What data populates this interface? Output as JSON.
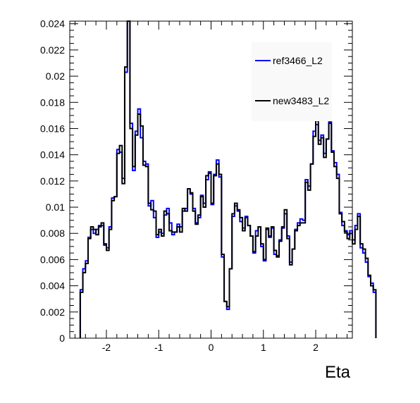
{
  "chart_data": {
    "type": "line",
    "title": "",
    "xlabel": "Eta",
    "ylabel": "",
    "xlim": [
      -2.7,
      2.7
    ],
    "ylim": [
      0,
      0.0242
    ],
    "x_ticks": [
      -2,
      -1,
      0,
      1,
      2
    ],
    "x_tick_labels": [
      "-2",
      "-1",
      "0",
      "1",
      "2"
    ],
    "y_ticks": [
      0,
      0.002,
      0.004,
      0.006,
      0.008,
      0.01,
      0.012,
      0.014,
      0.016,
      0.018,
      0.02,
      0.022,
      0.024
    ],
    "y_tick_labels": [
      "0",
      "0.002",
      "0.004",
      "0.006",
      "0.008",
      "0.01",
      "0.012",
      "0.014",
      "0.016",
      "0.018",
      "0.02",
      "0.022",
      "0.024"
    ],
    "grid": false,
    "legend_position": "top-right",
    "bin_edges_start": -2.5,
    "bin_width": 0.05,
    "series": [
      {
        "name": "ref3466_L2",
        "color": "#0000ff",
        "values": [
          0.0037,
          0.0053,
          0.0059,
          0.0077,
          0.0083,
          0.008,
          0.0083,
          0.0086,
          0.0086,
          0.0071,
          0.0069,
          0.0085,
          0.0107,
          0.0108,
          0.0144,
          0.0142,
          0.0122,
          0.0203,
          0.0243,
          0.0164,
          0.0128,
          0.0158,
          0.0175,
          0.0153,
          0.0135,
          0.0133,
          0.0101,
          0.0105,
          0.0092,
          0.0077,
          0.0081,
          0.008,
          0.0094,
          0.0099,
          0.0088,
          0.0079,
          0.0081,
          0.0087,
          0.0085,
          0.0097,
          0.0099,
          0.0114,
          0.011,
          0.0099,
          0.0088,
          0.0092,
          0.0109,
          0.0103,
          0.0121,
          0.0127,
          0.0102,
          0.0125,
          0.0136,
          0.0123,
          0.0062,
          0.0028,
          0.0022,
          0.0053,
          0.0093,
          0.0101,
          0.0097,
          0.0089,
          0.0084,
          0.0093,
          0.0086,
          0.0078,
          0.0065,
          0.0082,
          0.0085,
          0.007,
          0.0059,
          0.0083,
          0.0077,
          0.0084,
          0.0064,
          0.0063,
          0.0075,
          0.0084,
          0.0095,
          0.0078,
          0.0058,
          0.0068,
          0.0083,
          0.0088,
          0.0091,
          0.009,
          0.0121,
          0.0116,
          0.0133,
          0.0158,
          0.0163,
          0.0151,
          0.0155,
          0.0141,
          0.0152,
          0.0165,
          0.0143,
          0.0134,
          0.0125,
          0.0096,
          0.0086,
          0.0082,
          0.0079,
          0.0082,
          0.0075,
          0.0086,
          0.0095,
          0.0069,
          0.0065,
          0.0058,
          0.0047,
          0.0042,
          0.0035
        ]
      },
      {
        "name": "new3483_L2",
        "color": "#000000",
        "values": [
          0.0035,
          0.005,
          0.0057,
          0.0076,
          0.0085,
          0.0083,
          0.0079,
          0.0085,
          0.0088,
          0.0072,
          0.0067,
          0.0083,
          0.0105,
          0.0108,
          0.0141,
          0.0147,
          0.0118,
          0.0207,
          0.0243,
          0.016,
          0.0131,
          0.0155,
          0.0171,
          0.0162,
          0.0132,
          0.0131,
          0.0103,
          0.0098,
          0.0097,
          0.0079,
          0.0083,
          0.0078,
          0.0097,
          0.0095,
          0.0082,
          0.0081,
          0.0081,
          0.0085,
          0.0081,
          0.0099,
          0.0097,
          0.0114,
          0.0111,
          0.0097,
          0.0087,
          0.0094,
          0.0108,
          0.01,
          0.0124,
          0.0126,
          0.0103,
          0.0124,
          0.0133,
          0.0125,
          0.0064,
          0.0028,
          0.0024,
          0.0053,
          0.0095,
          0.0103,
          0.0098,
          0.0092,
          0.0082,
          0.0092,
          0.0086,
          0.0078,
          0.0066,
          0.0078,
          0.0085,
          0.0072,
          0.006,
          0.0084,
          0.0078,
          0.0085,
          0.0067,
          0.0062,
          0.0074,
          0.0085,
          0.0098,
          0.0076,
          0.0056,
          0.0068,
          0.0082,
          0.0086,
          0.0088,
          0.0088,
          0.0119,
          0.0113,
          0.0133,
          0.0154,
          0.0166,
          0.0148,
          0.0153,
          0.0138,
          0.0152,
          0.0164,
          0.0142,
          0.0131,
          0.0122,
          0.0095,
          0.0089,
          0.0081,
          0.0076,
          0.008,
          0.0072,
          0.0083,
          0.0093,
          0.0072,
          0.0068,
          0.0061,
          0.0048,
          0.004,
          0.0037
        ]
      }
    ]
  }
}
